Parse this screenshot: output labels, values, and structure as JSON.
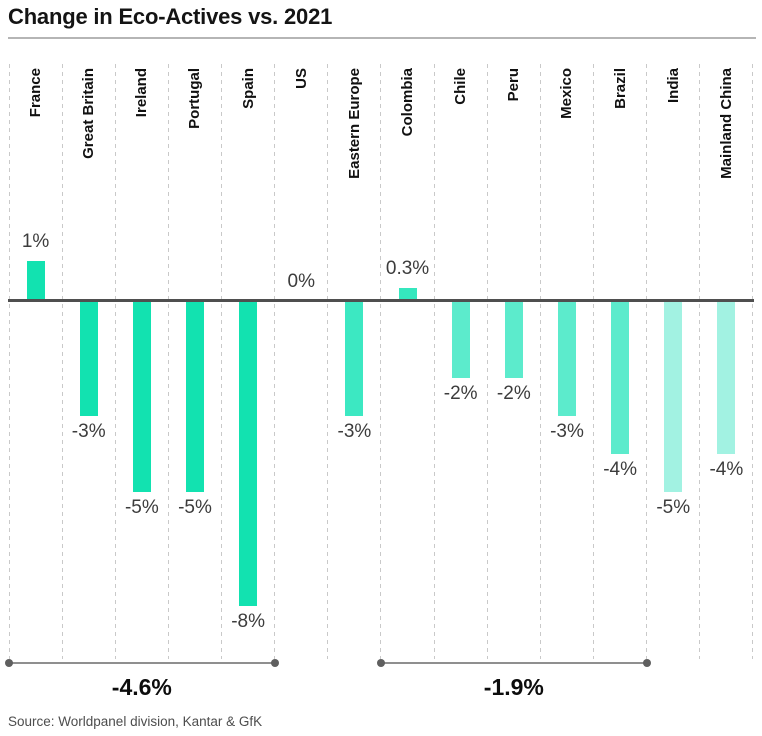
{
  "title": "Change in Eco-Actives vs. 2021",
  "source": "Source: Worldpanel division, Kantar & GfK",
  "chart_data": {
    "type": "bar",
    "title": "Change in Eco-Actives vs. 2021",
    "unit": "%",
    "orientation": "vertical",
    "baseline": 0,
    "ylim": [
      -8.5,
      1.5
    ],
    "grid": "dashed-vertical-columns",
    "categories": [
      "France",
      "Great Britain",
      "Ireland",
      "Portugal",
      "Spain",
      "US",
      "Eastern Europe",
      "Colombia",
      "Chile",
      "Peru",
      "Mexico",
      "Brazil",
      "India",
      "Mainland China"
    ],
    "values": [
      1,
      -3,
      -5,
      -5,
      -8,
      0,
      -3,
      0.3,
      -2,
      -2,
      -3,
      -4,
      -5,
      -4
    ],
    "labels": [
      "1%",
      "-3%",
      "-5%",
      "-5%",
      "-8%",
      "0%",
      "-3%",
      "0.3%",
      "-2%",
      "-2%",
      "-3%",
      "-4%",
      "-5%",
      "-4%"
    ],
    "bar_colors": [
      "#12E2B0",
      "#12E2B0",
      "#12E2B0",
      "#12E2B0",
      "#12E2B0",
      "#12E2B0",
      "#3CE8C2",
      "#35E7BE",
      "#5CEBCC",
      "#5CEBCC",
      "#5CEBCC",
      "#5CEBCC",
      "#A2F2E2",
      "#A2F2E2"
    ],
    "group_brackets": [
      {
        "label": "-4.6%",
        "start_category": "France",
        "end_category": "Spain",
        "start_index": 0,
        "end_index": 4
      },
      {
        "label": "-1.9%",
        "start_category": "Colombia",
        "end_category": "Brazil",
        "start_index": 7,
        "end_index": 11
      }
    ],
    "colors": {
      "axis": "#4f4f4f",
      "grid": "#c9c9c9",
      "bracket": "#8f8f8f",
      "bracket_dot": "#5f5f5f",
      "value_label": "#3c3c3c",
      "category_label": "#111111"
    }
  }
}
